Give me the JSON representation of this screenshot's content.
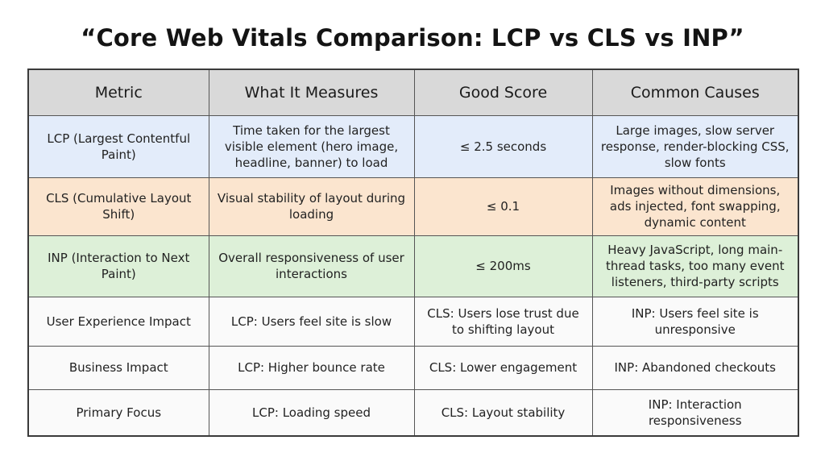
{
  "title": "“Core Web Vitals Comparison: LCP vs CLS vs INP”",
  "table": {
    "headers": [
      "Metric",
      "What It Measures",
      "Good Score",
      "Common Causes"
    ],
    "rows": [
      [
        "LCP (Largest Contentful Paint)",
        "Time taken for the largest visible element (hero image, headline, banner) to load",
        "≤ 2.5 seconds",
        "Large images, slow server response, render-blocking CSS, slow fonts"
      ],
      [
        "CLS (Cumulative Layout Shift)",
        "Visual stability of layout during loading",
        "≤ 0.1",
        "Images without dimensions, ads injected, font swapping, dynamic content"
      ],
      [
        "INP (Interaction to Next Paint)",
        "Overall responsiveness of user interactions",
        "≤ 200ms",
        "Heavy JavaScript, long main-thread tasks, too many event listeners, third-party scripts"
      ],
      [
        "User Experience Impact",
        "LCP: Users feel site is slow",
        "CLS: Users lose trust due to shifting layout",
        "INP: Users feel site is unresponsive"
      ],
      [
        "Business Impact",
        "LCP: Higher bounce rate",
        "CLS: Lower engagement",
        "INP: Abandoned checkouts"
      ],
      [
        "Primary Focus",
        "LCP: Loading speed",
        "CLS: Layout stability",
        "INP: Interaction responsiveness"
      ]
    ]
  },
  "colors": {
    "header_bg": "#d9d9d9",
    "lcp_row_bg": "#e3ecfa",
    "cls_row_bg": "#fbe5cf",
    "inp_row_bg": "#ddf0d8",
    "plain_row_bg": "#fafafa"
  }
}
